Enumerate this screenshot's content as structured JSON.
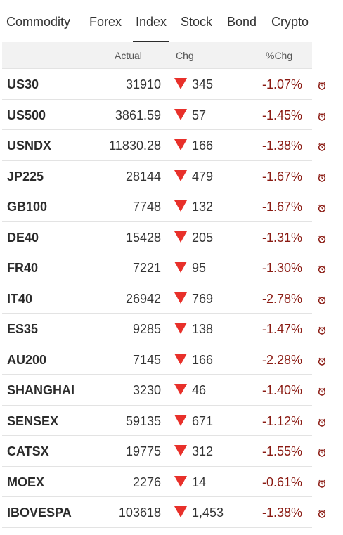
{
  "tabs": [
    {
      "label": "Commodity"
    },
    {
      "label": "Forex"
    },
    {
      "label": "Index",
      "active": true
    },
    {
      "label": "Stock"
    },
    {
      "label": "Bond"
    },
    {
      "label": "Crypto"
    }
  ],
  "table": {
    "headers": {
      "actual": "Actual",
      "chg": "Chg",
      "pct": "%Chg"
    },
    "rows": [
      {
        "name": "US30",
        "actual": "31910",
        "chg": "345",
        "pct": "-1.07%"
      },
      {
        "name": "US500",
        "actual": "3861.59",
        "chg": "57",
        "pct": "-1.45%"
      },
      {
        "name": "USNDX",
        "actual": "11830.28",
        "chg": "166",
        "pct": "-1.38%"
      },
      {
        "name": "JP225",
        "actual": "28144",
        "chg": "479",
        "pct": "-1.67%"
      },
      {
        "name": "GB100",
        "actual": "7748",
        "chg": "132",
        "pct": "-1.67%"
      },
      {
        "name": "DE40",
        "actual": "15428",
        "chg": "205",
        "pct": "-1.31%"
      },
      {
        "name": "FR40",
        "actual": "7221",
        "chg": "95",
        "pct": "-1.30%"
      },
      {
        "name": "IT40",
        "actual": "26942",
        "chg": "769",
        "pct": "-2.78%"
      },
      {
        "name": "ES35",
        "actual": "9285",
        "chg": "138",
        "pct": "-1.47%"
      },
      {
        "name": "AU200",
        "actual": "7145",
        "chg": "166",
        "pct": "-2.28%"
      },
      {
        "name": "SHANGHAI",
        "actual": "3230",
        "chg": "46",
        "pct": "-1.40%"
      },
      {
        "name": "SENSEX",
        "actual": "59135",
        "chg": "671",
        "pct": "-1.12%"
      },
      {
        "name": "CATSX",
        "actual": "19775",
        "chg": "312",
        "pct": "-1.55%"
      },
      {
        "name": "MOEX",
        "actual": "2276",
        "chg": "14",
        "pct": "-0.61%"
      },
      {
        "name": "IBOVESPA",
        "actual": "103618",
        "chg": "1,453",
        "pct": "-1.38%"
      }
    ]
  },
  "icons": {
    "change_direction": "down-arrow-icon",
    "row_action": "alarm-clock-icon"
  },
  "colors": {
    "down_arrow": "#e8302a",
    "pct_negative": "#8a1a12",
    "alarm_icon": "#8a1a12"
  }
}
